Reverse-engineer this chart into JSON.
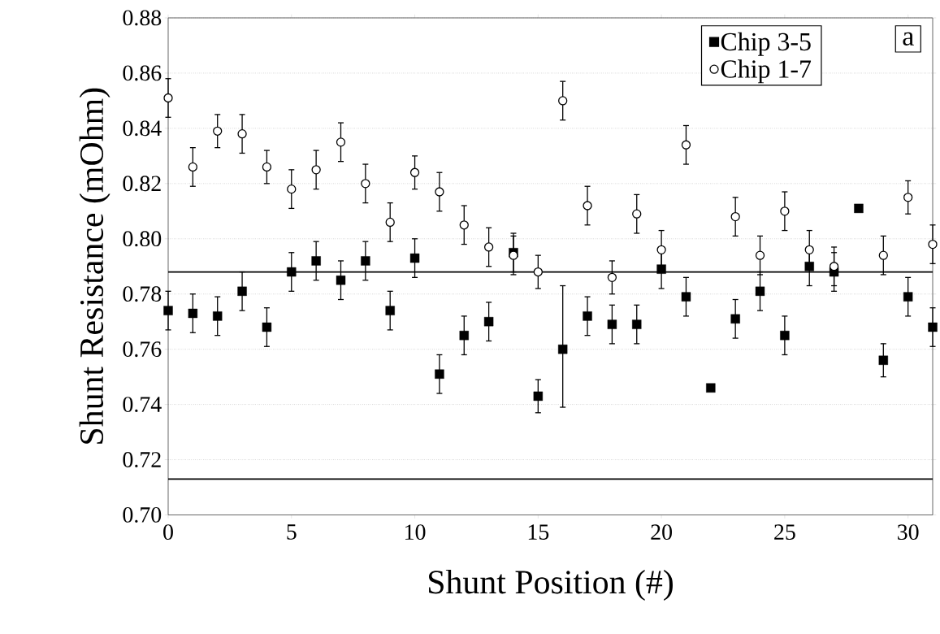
{
  "chart_data": {
    "type": "scatter",
    "xlabel": "Shunt Position (#)",
    "ylabel": "Shunt Resistance (mOhm)",
    "x": [
      0,
      1,
      2,
      3,
      4,
      5,
      6,
      7,
      8,
      9,
      10,
      11,
      12,
      13,
      14,
      15,
      16,
      17,
      18,
      19,
      20,
      21,
      22,
      23,
      24,
      25,
      26,
      27,
      28,
      29,
      30,
      31
    ],
    "series": [
      {
        "name": "Chip 3-5",
        "color": "#000000",
        "marker": "square",
        "values": [
          0.774,
          0.773,
          0.772,
          0.781,
          0.768,
          0.788,
          0.792,
          0.785,
          0.792,
          0.774,
          0.793,
          0.751,
          0.765,
          0.77,
          0.795,
          0.743,
          0.76,
          0.772,
          0.769,
          0.769,
          0.789,
          0.779,
          0.746,
          0.771,
          0.781,
          0.765,
          0.79,
          0.788,
          0.811,
          0.756,
          0.779,
          0.768
        ],
        "errors": [
          0.007,
          0.007,
          0.007,
          0.007,
          0.007,
          0.007,
          0.007,
          0.007,
          0.007,
          0.007,
          0.007,
          0.007,
          0.007,
          0.007,
          0.007,
          0.006,
          [
            0.739,
            0.783
          ],
          0.007,
          0.007,
          0.007,
          0.007,
          0.007,
          null,
          0.007,
          0.007,
          0.007,
          0.007,
          0.007,
          null,
          0.006,
          0.007,
          0.007
        ]
      },
      {
        "name": "Chip 1-7",
        "color": "#000000",
        "marker": "circle",
        "values": [
          0.851,
          0.826,
          0.839,
          0.838,
          0.826,
          0.818,
          0.825,
          0.835,
          0.82,
          0.806,
          0.824,
          0.817,
          0.805,
          0.797,
          0.794,
          0.788,
          0.85,
          0.812,
          0.786,
          0.809,
          0.796,
          0.834,
          null,
          0.808,
          0.794,
          0.81,
          0.796,
          0.79,
          null,
          0.794,
          0.815,
          0.798
        ],
        "errors": [
          0.007,
          0.007,
          0.006,
          0.007,
          0.006,
          0.007,
          0.007,
          0.007,
          0.007,
          0.007,
          0.006,
          0.007,
          0.007,
          0.007,
          0.007,
          0.006,
          0.007,
          0.007,
          0.006,
          0.007,
          0.007,
          0.007,
          null,
          0.007,
          0.007,
          0.007,
          0.007,
          0.007,
          null,
          0.007,
          0.006,
          0.007
        ]
      }
    ],
    "ref_lines": [
      {
        "axis": "y",
        "value": 0.788,
        "color": "#000000"
      },
      {
        "axis": "y",
        "value": 0.713,
        "color": "#000000"
      }
    ],
    "annotations": [
      "a"
    ],
    "xlim": [
      0,
      31
    ],
    "ylim": [
      0.7,
      0.88
    ],
    "xticks": [
      0,
      5,
      10,
      15,
      20,
      25,
      30
    ],
    "yticks": [
      {
        "value": 0.7,
        "label": "0.70"
      },
      {
        "value": 0.72,
        "label": "0.72"
      },
      {
        "value": 0.74,
        "label": "0.74"
      },
      {
        "value": 0.76,
        "label": "0.76"
      },
      {
        "value": 0.78,
        "label": "0.78"
      },
      {
        "value": 0.8,
        "label": "0.80"
      },
      {
        "value": 0.82,
        "label": "0.82"
      },
      {
        "value": 0.84,
        "label": "0.84"
      },
      {
        "value": 0.86,
        "label": "0.86"
      },
      {
        "value": 0.88,
        "label": "0.88"
      }
    ],
    "grid": "y",
    "legend": "top right"
  }
}
